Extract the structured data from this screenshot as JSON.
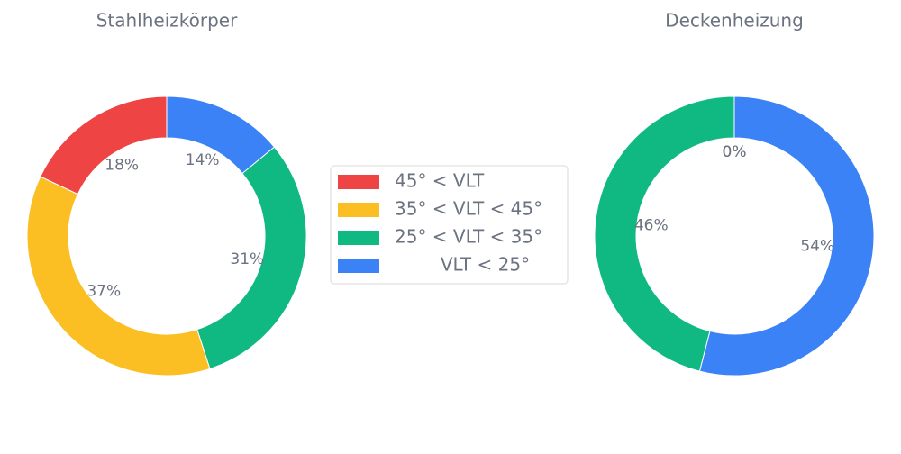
{
  "chart_data": [
    {
      "type": "pie",
      "title": "Stahlheizkörper",
      "categories": [
        "45° < VLT",
        "35° < VLT < 45°",
        "25° < VLT < 35°",
        "        VLT < 25°"
      ],
      "colors": [
        "#ef4444",
        "#fbbf24",
        "#10b981",
        "#3b82f6"
      ],
      "values": [
        18,
        37,
        31,
        14
      ],
      "value_labels": [
        "18%",
        "37%",
        "31%",
        "14%"
      ]
    },
    {
      "type": "pie",
      "title": "Deckenheizung",
      "values": [
        0,
        0,
        46,
        54
      ],
      "value_labels": [
        "0%",
        "0%",
        "46%",
        "54%"
      ]
    }
  ]
}
